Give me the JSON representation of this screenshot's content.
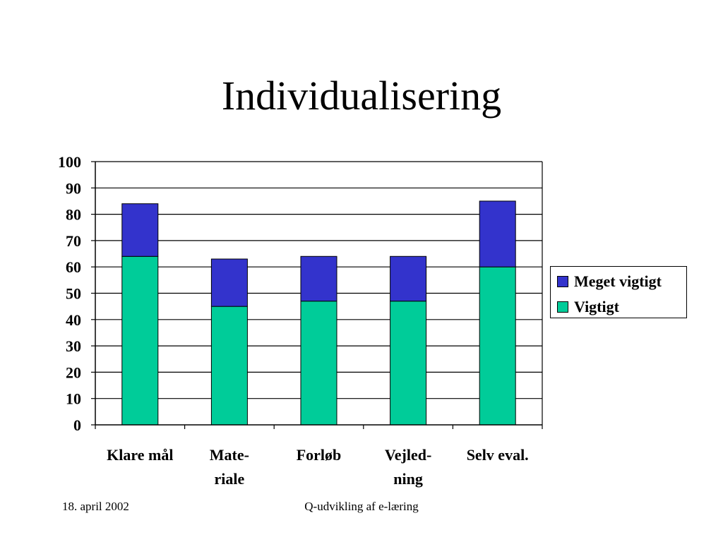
{
  "slide": {
    "title": "Individualisering",
    "footer_date": "18. april 2002",
    "footer_center": "Q-udvikling af e-læring"
  },
  "chart_data": {
    "type": "bar",
    "stacked": true,
    "categories": [
      "Klare mål",
      "Mate- riale",
      "Forløb",
      "Vejled- ning",
      "Selv eval."
    ],
    "category_lines": [
      [
        "Klare mål"
      ],
      [
        "Mate-",
        "riale"
      ],
      [
        "Forløb"
      ],
      [
        "Vejled-",
        "ning"
      ],
      [
        "Selv eval."
      ]
    ],
    "series": [
      {
        "name": "Vigtigt",
        "color": "#00CC99",
        "values": [
          64,
          45,
          47,
          47,
          60
        ]
      },
      {
        "name": "Meget vigtigt",
        "color": "#3333CC",
        "values": [
          20,
          18,
          17,
          17,
          25
        ]
      }
    ],
    "legend_order": [
      "Meget vigtigt",
      "Vigtigt"
    ],
    "ylim": [
      0,
      100
    ],
    "yticks": [
      0,
      10,
      20,
      30,
      40,
      50,
      60,
      70,
      80,
      90,
      100
    ],
    "grid": true,
    "legend_position": "right"
  }
}
